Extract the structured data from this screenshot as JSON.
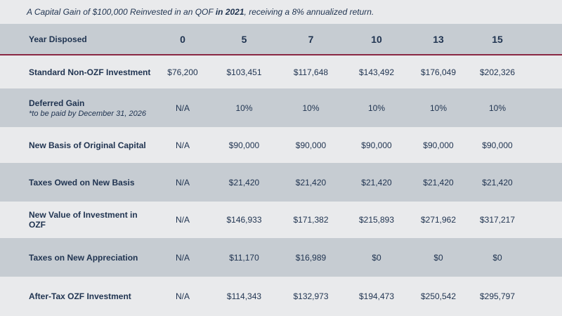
{
  "caption": {
    "part1": "A Capital Gain of $100,000 Reinvested in an QOF ",
    "bold": "in 2021",
    "part2": ", receiving a 8% annualized return."
  },
  "header": {
    "label": "Year Disposed",
    "years": [
      "0",
      "5",
      "7",
      "10",
      "13",
      "15"
    ]
  },
  "rows": [
    {
      "label": "Standard Non-OZF Investment",
      "note": "",
      "values": [
        "$76,200",
        "$103,451",
        "$117,648",
        "$143,492",
        "$176,049",
        "$202,326"
      ]
    },
    {
      "label": "Deferred Gain",
      "note": "*to be paid by December 31, 2026",
      "values": [
        "N/A",
        "10%",
        "10%",
        "10%",
        "10%",
        "10%"
      ]
    },
    {
      "label": "New Basis of Original Capital",
      "note": "",
      "values": [
        "N/A",
        "$90,000",
        "$90,000",
        "$90,000",
        "$90,000",
        "$90,000"
      ]
    },
    {
      "label": "Taxes Owed on New Basis",
      "note": "",
      "values": [
        "N/A",
        "$21,420",
        "$21,420",
        "$21,420",
        "$21,420",
        "$21,420"
      ]
    },
    {
      "label": "New Value of Investment in OZF",
      "note": "",
      "values": [
        "N/A",
        "$146,933",
        "$171,382",
        "$215,893",
        "$271,962",
        "$317,217"
      ]
    },
    {
      "label": "Taxes on New Appreciation",
      "note": "",
      "values": [
        "N/A",
        "$11,170",
        "$16,989",
        "$0",
        "$0",
        "$0"
      ]
    },
    {
      "label": "After-Tax OZF Investment",
      "note": "",
      "values": [
        "N/A",
        "$114,343",
        "$132,973",
        "$194,473",
        "$250,542",
        "$295,797"
      ]
    }
  ]
}
